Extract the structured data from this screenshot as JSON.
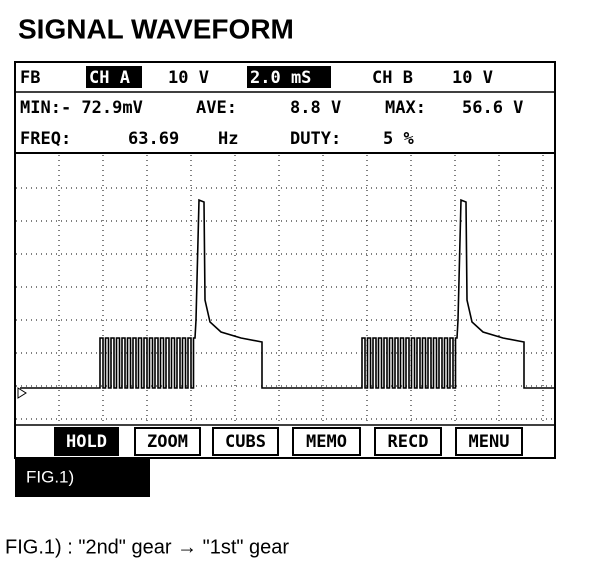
{
  "header": {
    "title": "SIGNAL WAVEFORM"
  },
  "scope": {
    "row1": [
      "FB",
      "CH A",
      "10 V",
      "2.0 mS",
      "CH B",
      "10 V"
    ],
    "row2": [
      "MIN:- 72.9mV",
      "AVE:",
      "8.8 V",
      "MAX:",
      "56.6 V"
    ],
    "row3": [
      "FREQ:",
      "63.69",
      "Hz",
      "DUTY:",
      "5 %"
    ],
    "buttons": [
      "HOLD",
      "ZOOM",
      "CUBS",
      "MEMO",
      "RECD",
      "MENU"
    ]
  },
  "figure_label": "FIG.1)",
  "caption": "FIG.1) : \"2nd\" gear → \"1st\" gear"
}
